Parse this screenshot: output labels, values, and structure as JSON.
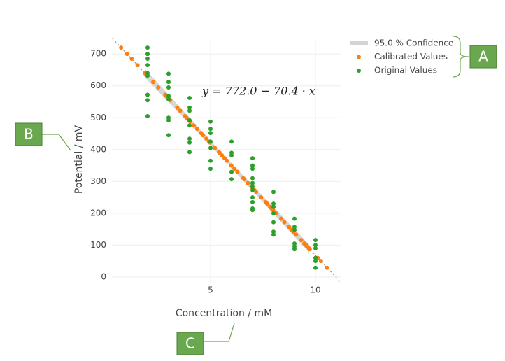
{
  "chart_data": {
    "type": "scatter",
    "x_label": "Concentration / mM",
    "y_label": "Potential / mV",
    "xlim": [
      0.3,
      11.2
    ],
    "ylim": [
      -20,
      740
    ],
    "xticks": [
      5,
      10
    ],
    "yticks": [
      0,
      100,
      200,
      300,
      400,
      500,
      600,
      700
    ],
    "grid": true,
    "legend": "top-right",
    "fit": {
      "intercept": 772.0,
      "slope": -70.4,
      "color": "#888888",
      "label": "y = 772.0 − 70.4 · x"
    },
    "series": [
      {
        "name": "95.0 % Confidence",
        "kind": "band",
        "color": "#d3d3d3",
        "x": [
          1.9,
          5.5,
          9.7
        ],
        "upper": [
          652,
          392,
          102
        ],
        "lower": [
          624,
          378,
          76
        ]
      },
      {
        "name": "Calibrated Values",
        "color": "#ff7f0e",
        "x": [
          0.74,
          1.02,
          1.24,
          1.52,
          1.88,
          1.99,
          2.84,
          3.08,
          3.79,
          1.9,
          2.27,
          2.51,
          2.9,
          3.04,
          3.86,
          3.98,
          4.64,
          2.98,
          3.41,
          3.55,
          3.98,
          4.2,
          4.8,
          4.97,
          5.4,
          4.03,
          4.36,
          4.55,
          4.93,
          5.21,
          5.78,
          6.14,
          4.93,
          5.43,
          5.54,
          6.28,
          6.61,
          5.67,
          5.99,
          6.14,
          6.56,
          6.78,
          6.95,
          7.09,
          7.41,
          7.63,
          7.91,
          7.98,
          7.17,
          7.7,
          7.84,
          8.13,
          8.52,
          8.95,
          9.08,
          8.37,
          8.74,
          8.86,
          9.47,
          9.6,
          9.73,
          9.32,
          9.55,
          9.69,
          10.11,
          10.26,
          10.55
        ],
        "values": [
          720,
          700,
          685,
          665,
          640,
          632,
          572,
          555,
          505,
          638,
          612,
          595,
          568,
          558,
          500,
          492,
          445,
          562,
          532,
          522,
          492,
          476,
          434,
          422,
          392,
          488,
          465,
          452,
          425,
          405,
          365,
          340,
          425,
          390,
          382,
          330,
          307,
          373,
          350,
          340,
          310,
          295,
          283,
          273,
          250,
          235,
          215,
          210,
          267,
          230,
          220,
          200,
          172,
          142,
          133,
          183,
          157,
          148,
          105,
          96,
          87,
          116,
          100,
          90,
          60,
          50,
          29
        ]
      },
      {
        "name": "Original Values",
        "color": "#2ca02c",
        "x": [
          2,
          2,
          2,
          2,
          2,
          2,
          2,
          2,
          2,
          3,
          3,
          3,
          3,
          3,
          3,
          3,
          3,
          4,
          4,
          4,
          4,
          4,
          4,
          4,
          4,
          5,
          5,
          5,
          5,
          5,
          5,
          5,
          6,
          6,
          6,
          6,
          6,
          7,
          7,
          7,
          7,
          7,
          7,
          7,
          7,
          7,
          7,
          7,
          8,
          8,
          8,
          8,
          8,
          8,
          8,
          9,
          9,
          9,
          9,
          9,
          9,
          10,
          10,
          10,
          10,
          10,
          10
        ],
        "values": [
          720,
          700,
          685,
          665,
          640,
          632,
          572,
          555,
          505,
          638,
          612,
          595,
          568,
          558,
          500,
          492,
          445,
          562,
          532,
          522,
          492,
          476,
          434,
          422,
          392,
          488,
          465,
          452,
          425,
          405,
          365,
          340,
          425,
          390,
          382,
          330,
          307,
          373,
          350,
          340,
          310,
          295,
          283,
          273,
          250,
          235,
          215,
          210,
          267,
          230,
          220,
          200,
          172,
          142,
          133,
          183,
          157,
          148,
          105,
          96,
          87,
          116,
          100,
          90,
          60,
          50,
          29
        ]
      }
    ],
    "callouts": [
      "A",
      "B",
      "C"
    ]
  }
}
